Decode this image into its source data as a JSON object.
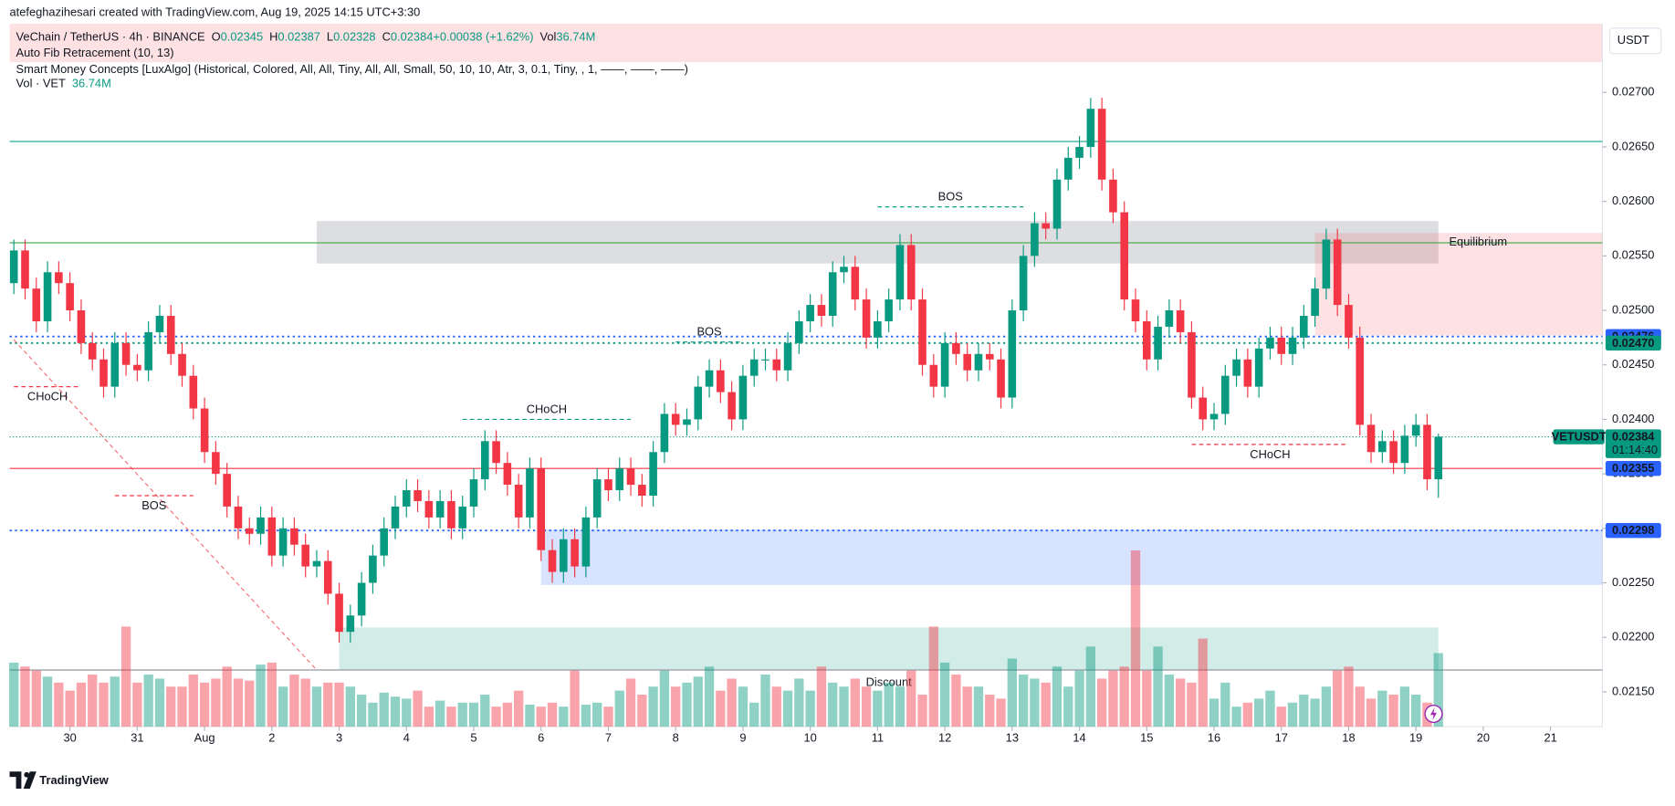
{
  "header": {
    "credit": "atefeghazihesari created with TradingView.com, Aug 19, 2025 14:15 UTC+3:30",
    "symbol": "VeChain / TetherUS · 4h · BINANCE",
    "ohlc": [
      {
        "key": "O",
        "value": "0.02345"
      },
      {
        "key": "H",
        "value": "0.02387"
      },
      {
        "key": "L",
        "value": "0.02328"
      },
      {
        "key": "C",
        "value": "0.02384"
      },
      {
        "key": "",
        "value": "+0.00038 (+1.62%)"
      },
      {
        "key": "Vol",
        "value": "36.74M"
      }
    ],
    "indicators": [
      "Auto Fib Retracement (10, 13)",
      "Smart Money Concepts [LuxAlgo] (Historical, Colored, All, All, Tiny, All, All, Small, 50, 10, 10, Atr, 3, 0.1, Tiny, , 1, ——, ——, ——)"
    ],
    "vol_indicator": "Vol · VET",
    "vol_indicator_value": "36.74M",
    "currency": "USDT"
  },
  "footer": {
    "logo": "TradingView"
  },
  "chart_data": {
    "type": "candlestick",
    "symbol": "VETUSDT",
    "countdown": "01:14:40",
    "up_color": "#089981",
    "down_color": "#f23645",
    "open": [
      0.02525,
      0.02555,
      0.0252,
      0.0249,
      0.02535,
      0.02525,
      0.025,
      0.0247,
      0.02455,
      0.0243,
      0.0247,
      0.0245,
      0.02445,
      0.0248,
      0.02495,
      0.0246,
      0.0244,
      0.0241,
      0.0237,
      0.0235,
      0.0232,
      0.023,
      0.02295,
      0.0231,
      0.02275,
      0.023,
      0.02285,
      0.02265,
      0.0227,
      0.0224,
      0.02205,
      0.0222,
      0.0225,
      0.02275,
      0.023,
      0.0232,
      0.02335,
      0.02325,
      0.0231,
      0.02325,
      0.023,
      0.0232,
      0.02345,
      0.0238,
      0.0236,
      0.0234,
      0.0231,
      0.02355,
      0.0228,
      0.0226,
      0.0229,
      0.02265,
      0.0231,
      0.02345,
      0.02335,
      0.02355,
      0.0234,
      0.0233,
      0.0237,
      0.02405,
      0.02395,
      0.024,
      0.0243,
      0.02445,
      0.02425,
      0.024,
      0.0244,
      0.02455,
      0.02455,
      0.02445,
      0.0247,
      0.0249,
      0.02505,
      0.02495,
      0.02535,
      0.0254,
      0.0251,
      0.02475,
      0.0249,
      0.0251,
      0.0256,
      0.0251,
      0.0245,
      0.0243,
      0.0247,
      0.0246,
      0.02445,
      0.0246,
      0.02455,
      0.0242,
      0.025,
      0.0255,
      0.0258,
      0.02575,
      0.0262,
      0.0264,
      0.0265,
      0.02685,
      0.0262,
      0.0259,
      0.0251,
      0.0249,
      0.02455,
      0.02485,
      0.025,
      0.0248,
      0.0242,
      0.024,
      0.02405,
      0.0244,
      0.02455,
      0.0243,
      0.02465,
      0.02475,
      0.0246,
      0.02475,
      0.02495,
      0.0252,
      0.02565,
      0.02505,
      0.02475,
      0.02395,
      0.0237,
      0.0238,
      0.0236,
      0.02385,
      0.02395,
      0.02345
    ],
    "high": [
      0.02565,
      0.02565,
      0.0253,
      0.02545,
      0.02545,
      0.02535,
      0.0251,
      0.0248,
      0.02465,
      0.0248,
      0.0248,
      0.0246,
      0.0249,
      0.02505,
      0.02505,
      0.0247,
      0.0245,
      0.0242,
      0.0238,
      0.0236,
      0.0233,
      0.0231,
      0.0232,
      0.0232,
      0.0231,
      0.0231,
      0.02295,
      0.0228,
      0.0228,
      0.0225,
      0.0223,
      0.0226,
      0.02285,
      0.0231,
      0.0233,
      0.02345,
      0.02345,
      0.02335,
      0.02335,
      0.02335,
      0.0233,
      0.02355,
      0.0239,
      0.0239,
      0.0237,
      0.0235,
      0.02365,
      0.02365,
      0.0229,
      0.023,
      0.023,
      0.0232,
      0.02355,
      0.02355,
      0.02365,
      0.02365,
      0.0235,
      0.0238,
      0.02415,
      0.02415,
      0.0241,
      0.0244,
      0.02455,
      0.02455,
      0.02435,
      0.0245,
      0.02465,
      0.02465,
      0.02465,
      0.0248,
      0.025,
      0.02515,
      0.02515,
      0.02545,
      0.0255,
      0.0255,
      0.0252,
      0.025,
      0.0252,
      0.0257,
      0.0257,
      0.0252,
      0.0246,
      0.0248,
      0.0248,
      0.0247,
      0.0247,
      0.0247,
      0.02465,
      0.0251,
      0.0256,
      0.0259,
      0.0259,
      0.0263,
      0.0265,
      0.0266,
      0.02695,
      0.02695,
      0.0263,
      0.026,
      0.0252,
      0.025,
      0.02495,
      0.0251,
      0.0251,
      0.0249,
      0.0243,
      0.02415,
      0.0245,
      0.02465,
      0.02465,
      0.02475,
      0.02485,
      0.02485,
      0.02485,
      0.02505,
      0.0253,
      0.02575,
      0.02575,
      0.02515,
      0.02485,
      0.02405,
      0.0239,
      0.0239,
      0.02395,
      0.02405,
      0.02405,
      0.02387
    ],
    "low": [
      0.02515,
      0.0251,
      0.0248,
      0.0248,
      0.02515,
      0.0249,
      0.0246,
      0.02445,
      0.0242,
      0.0242,
      0.0244,
      0.02435,
      0.02435,
      0.0247,
      0.0245,
      0.0243,
      0.024,
      0.0236,
      0.0234,
      0.0231,
      0.0229,
      0.02285,
      0.02285,
      0.02265,
      0.02265,
      0.02275,
      0.02255,
      0.02255,
      0.0223,
      0.02195,
      0.02195,
      0.0221,
      0.0224,
      0.02265,
      0.0229,
      0.0231,
      0.02315,
      0.023,
      0.023,
      0.0229,
      0.0229,
      0.0231,
      0.02335,
      0.0235,
      0.0233,
      0.023,
      0.023,
      0.0227,
      0.0225,
      0.0225,
      0.02255,
      0.02255,
      0.023,
      0.02325,
      0.02325,
      0.0233,
      0.0232,
      0.0232,
      0.0236,
      0.02385,
      0.02385,
      0.0239,
      0.0242,
      0.02415,
      0.0239,
      0.0239,
      0.0243,
      0.02445,
      0.02435,
      0.02435,
      0.0246,
      0.0248,
      0.02485,
      0.02485,
      0.02525,
      0.025,
      0.02465,
      0.02465,
      0.0248,
      0.025,
      0.025,
      0.0244,
      0.0242,
      0.0242,
      0.0245,
      0.02435,
      0.02435,
      0.02445,
      0.0241,
      0.0241,
      0.0249,
      0.0254,
      0.02565,
      0.02565,
      0.0261,
      0.0263,
      0.0264,
      0.0261,
      0.0258,
      0.025,
      0.0248,
      0.02445,
      0.02445,
      0.02475,
      0.0247,
      0.0241,
      0.0239,
      0.0239,
      0.02395,
      0.0243,
      0.0242,
      0.0242,
      0.02455,
      0.0245,
      0.0245,
      0.02465,
      0.02485,
      0.0251,
      0.02495,
      0.02465,
      0.02385,
      0.0236,
      0.0236,
      0.0235,
      0.0235,
      0.02375,
      0.02335,
      0.02328
    ],
    "close": [
      0.02555,
      0.0252,
      0.0249,
      0.02535,
      0.02525,
      0.025,
      0.0247,
      0.02455,
      0.0243,
      0.0247,
      0.0245,
      0.02445,
      0.0248,
      0.02495,
      0.0246,
      0.0244,
      0.0241,
      0.0237,
      0.0235,
      0.0232,
      0.023,
      0.02295,
      0.0231,
      0.02275,
      0.023,
      0.02285,
      0.02265,
      0.0227,
      0.0224,
      0.02205,
      0.0222,
      0.0225,
      0.02275,
      0.023,
      0.0232,
      0.02335,
      0.02325,
      0.0231,
      0.02325,
      0.023,
      0.0232,
      0.02345,
      0.0238,
      0.0236,
      0.0234,
      0.0231,
      0.02355,
      0.0228,
      0.0226,
      0.0229,
      0.02265,
      0.0231,
      0.02345,
      0.02335,
      0.02355,
      0.0234,
      0.0233,
      0.0237,
      0.02405,
      0.02395,
      0.024,
      0.0243,
      0.02445,
      0.02425,
      0.024,
      0.0244,
      0.02455,
      0.02455,
      0.02445,
      0.0247,
      0.0249,
      0.02505,
      0.02495,
      0.02535,
      0.0254,
      0.0251,
      0.02475,
      0.0249,
      0.0251,
      0.0256,
      0.0251,
      0.0245,
      0.0243,
      0.0247,
      0.0246,
      0.02445,
      0.0246,
      0.02455,
      0.0242,
      0.025,
      0.0255,
      0.0258,
      0.02575,
      0.0262,
      0.0264,
      0.0265,
      0.02685,
      0.0262,
      0.0259,
      0.0251,
      0.0249,
      0.02455,
      0.02485,
      0.025,
      0.0248,
      0.0242,
      0.024,
      0.02405,
      0.0244,
      0.02455,
      0.0243,
      0.02465,
      0.02475,
      0.0246,
      0.02475,
      0.02495,
      0.0252,
      0.02565,
      0.02505,
      0.02475,
      0.02395,
      0.0237,
      0.0238,
      0.0236,
      0.02385,
      0.02395,
      0.02345,
      0.02384
    ],
    "volume": [
      32,
      30,
      28,
      25,
      22,
      18,
      22,
      26,
      22,
      25,
      50,
      22,
      26,
      24,
      20,
      20,
      26,
      22,
      24,
      30,
      24,
      23,
      31,
      32,
      20,
      26,
      24,
      20,
      22,
      22,
      20,
      16,
      12,
      17,
      15,
      14,
      18,
      10,
      13,
      10,
      12,
      12,
      16,
      10,
      12,
      18,
      11,
      10,
      12,
      10,
      28,
      11,
      12,
      10,
      18,
      24,
      16,
      20,
      28,
      20,
      22,
      25,
      30,
      18,
      24,
      20,
      12,
      26,
      20,
      18,
      24,
      18,
      30,
      22,
      20,
      24,
      20,
      18,
      22,
      20,
      28,
      16,
      50,
      32,
      26,
      20,
      20,
      16,
      14,
      34,
      26,
      24,
      22,
      30,
      20,
      28,
      40,
      24,
      28,
      30,
      88,
      28,
      40,
      26,
      24,
      22,
      44,
      14,
      22,
      10,
      12,
      14,
      18,
      10,
      12,
      16,
      14,
      20,
      28,
      30,
      20,
      14,
      18,
      16,
      20,
      16,
      12,
      36.74
    ],
    "ylim": [
      0.02118,
      0.02763
    ],
    "yticks": [
      {
        "value": 0.0215,
        "label": "0.02150"
      },
      {
        "value": 0.022,
        "label": "0.02200"
      },
      {
        "value": 0.0225,
        "label": "0.02250"
      },
      {
        "value": 0.023,
        "label": "0.02300"
      },
      {
        "value": 0.0235,
        "label": "0.02350"
      },
      {
        "value": 0.024,
        "label": "0.02400"
      },
      {
        "value": 0.0245,
        "label": "0.02450"
      },
      {
        "value": 0.025,
        "label": "0.02500"
      },
      {
        "value": 0.0255,
        "label": "0.02550"
      },
      {
        "value": 0.026,
        "label": "0.02600"
      },
      {
        "value": 0.0265,
        "label": "0.02650"
      },
      {
        "value": 0.027,
        "label": "0.02700"
      }
    ],
    "xlim": [
      -0.38,
      141.62
    ],
    "xticks": [
      {
        "value": 5,
        "label": "30"
      },
      {
        "value": 11,
        "label": "31"
      },
      {
        "value": 17,
        "label": "Aug"
      },
      {
        "value": 23,
        "label": "2"
      },
      {
        "value": 29,
        "label": "3"
      },
      {
        "value": 35,
        "label": "4"
      },
      {
        "value": 41,
        "label": "5"
      },
      {
        "value": 47,
        "label": "6"
      },
      {
        "value": 53,
        "label": "7"
      },
      {
        "value": 59,
        "label": "8"
      },
      {
        "value": 65,
        "label": "9"
      },
      {
        "value": 71,
        "label": "10"
      },
      {
        "value": 77,
        "label": "11"
      },
      {
        "value": 83,
        "label": "12"
      },
      {
        "value": 89,
        "label": "13"
      },
      {
        "value": 95,
        "label": "14"
      },
      {
        "value": 101,
        "label": "15"
      },
      {
        "value": 107,
        "label": "16"
      },
      {
        "value": 113,
        "label": "17"
      },
      {
        "value": 119,
        "label": "18"
      },
      {
        "value": 125,
        "label": "19"
      },
      {
        "value": 131,
        "label": "20"
      },
      {
        "value": 137,
        "label": "21"
      }
    ],
    "zones": [
      {
        "top": 0.02582,
        "bottom": 0.02543,
        "from": 27,
        "to": 127,
        "color": "rgba(120,123,134,0.25)",
        "label": "Equilibrium"
      },
      {
        "top": 0.02571,
        "bottom": 0.02477,
        "from": 116,
        "to": 141.62,
        "color": "rgba(242,54,69,0.15)"
      },
      {
        "top": 0.02299,
        "bottom": 0.02248,
        "from": 47,
        "to": 141.62,
        "color": "rgba(41,98,255,0.18)"
      },
      {
        "top": 0.02209,
        "bottom": 0.0217,
        "from": 29,
        "to": 127,
        "color": "rgba(8,153,129,0.18)",
        "label": "Discount"
      }
    ],
    "levels": [
      {
        "value": 0.02655,
        "color": "#22ab94",
        "style": "solid"
      },
      {
        "value": 0.02562,
        "color": "#4caf50",
        "style": "solid"
      },
      {
        "value": 0.02476,
        "color": "#2962ff",
        "style": "dotted",
        "label": "0.02476",
        "tag_color": "#2962ff"
      },
      {
        "value": 0.0247,
        "color": "#089981",
        "style": "dotted",
        "label": "0.02470",
        "tag_color": "#089981"
      },
      {
        "value": 0.02384,
        "color": "#089981",
        "style": "fine"
      },
      {
        "value": 0.02355,
        "color": "#f23645",
        "style": "solid",
        "label": "0.02355",
        "tag_color": "#2962ff"
      },
      {
        "value": 0.02298,
        "color": "#2962ff",
        "style": "dotted",
        "label": "0.02298",
        "tag_color": "#2962ff"
      },
      {
        "value": 0.0217,
        "color": "#9598a1",
        "style": "solid"
      }
    ],
    "structures": [
      {
        "text": "BOS",
        "value": 0.02595,
        "from": 77,
        "to": 90,
        "color": "#089981",
        "position": "above"
      },
      {
        "text": "CHoCH",
        "value": 0.024,
        "from": 40,
        "to": 55,
        "color": "#089981",
        "position": "above"
      },
      {
        "text": "BOS",
        "value": 0.02471,
        "from": 59,
        "to": 65,
        "color": "#089981",
        "position": "above"
      },
      {
        "text": "CHoCH",
        "value": 0.0243,
        "from": 0,
        "to": 6,
        "color": "#f23645",
        "position": "below"
      },
      {
        "text": "BOS",
        "value": 0.0233,
        "from": 9,
        "to": 16,
        "color": "#f23645",
        "position": "below"
      },
      {
        "text": "CHoCH",
        "value": 0.02377,
        "from": 105,
        "to": 119,
        "color": "#f23645",
        "position": "below"
      }
    ],
    "fib_line": {
      "x": [
        0,
        27
      ],
      "y": [
        0.02473,
        0.0217
      ],
      "color": "#f23645"
    }
  }
}
